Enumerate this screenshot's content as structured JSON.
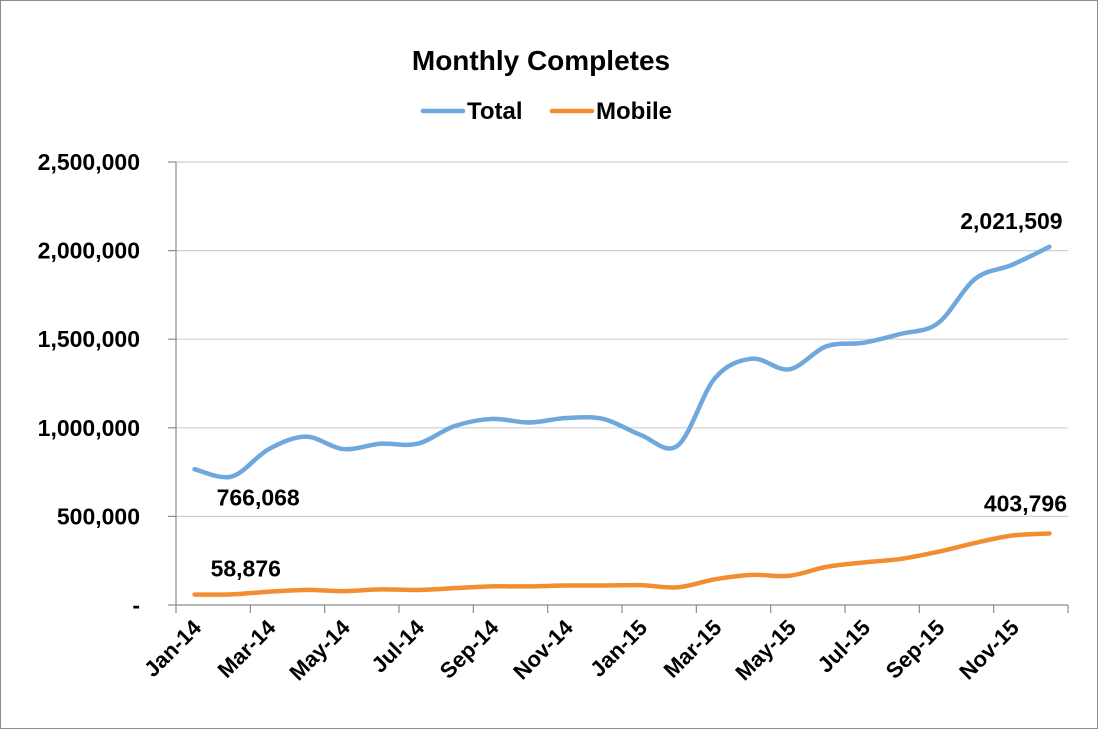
{
  "chart_data": {
    "type": "line",
    "title": "Monthly Completes",
    "legend_position": "top",
    "grid": true,
    "ylim": [
      0,
      2500000
    ],
    "yticks": [
      "-",
      "500,000",
      "1,000,000",
      "1,500,000",
      "2,000,000",
      "2,500,000"
    ],
    "x": [
      "Jan-14",
      "Feb-14",
      "Mar-14",
      "Apr-14",
      "May-14",
      "Jun-14",
      "Jul-14",
      "Aug-14",
      "Sep-14",
      "Oct-14",
      "Nov-14",
      "Dec-14",
      "Jan-15",
      "Feb-15",
      "Mar-15",
      "Apr-15",
      "May-15",
      "Jun-15",
      "Jul-15",
      "Aug-15",
      "Sep-15",
      "Oct-15",
      "Nov-15",
      "Dec-15"
    ],
    "xtick_labels": [
      "Jan-14",
      "Mar-14",
      "May-14",
      "Jul-14",
      "Sep-14",
      "Nov-14",
      "Jan-15",
      "Mar-15",
      "May-15",
      "Jul-15",
      "Sep-15",
      "Nov-15"
    ],
    "series": [
      {
        "name": "Total",
        "color": "#6fa8dc",
        "values": [
          766068,
          725000,
          880000,
          950000,
          880000,
          910000,
          910000,
          1010000,
          1050000,
          1030000,
          1055000,
          1050000,
          960000,
          900000,
          1280000,
          1390000,
          1330000,
          1460000,
          1480000,
          1530000,
          1590000,
          1840000,
          1920000,
          2021509
        ]
      },
      {
        "name": "Mobile",
        "color": "#f28e30",
        "values": [
          58876,
          60000,
          75000,
          85000,
          78000,
          88000,
          85000,
          95000,
          105000,
          105000,
          110000,
          110000,
          112000,
          100000,
          145000,
          170000,
          165000,
          215000,
          240000,
          260000,
          300000,
          350000,
          392000,
          403796
        ]
      }
    ],
    "data_labels": [
      {
        "series": "Total",
        "index": 0,
        "text": "766,068"
      },
      {
        "series": "Mobile",
        "index": 0,
        "text": "58,876"
      },
      {
        "series": "Total",
        "index": 23,
        "text": "2,021,509"
      },
      {
        "series": "Mobile",
        "index": 23,
        "text": "403,796"
      }
    ]
  }
}
